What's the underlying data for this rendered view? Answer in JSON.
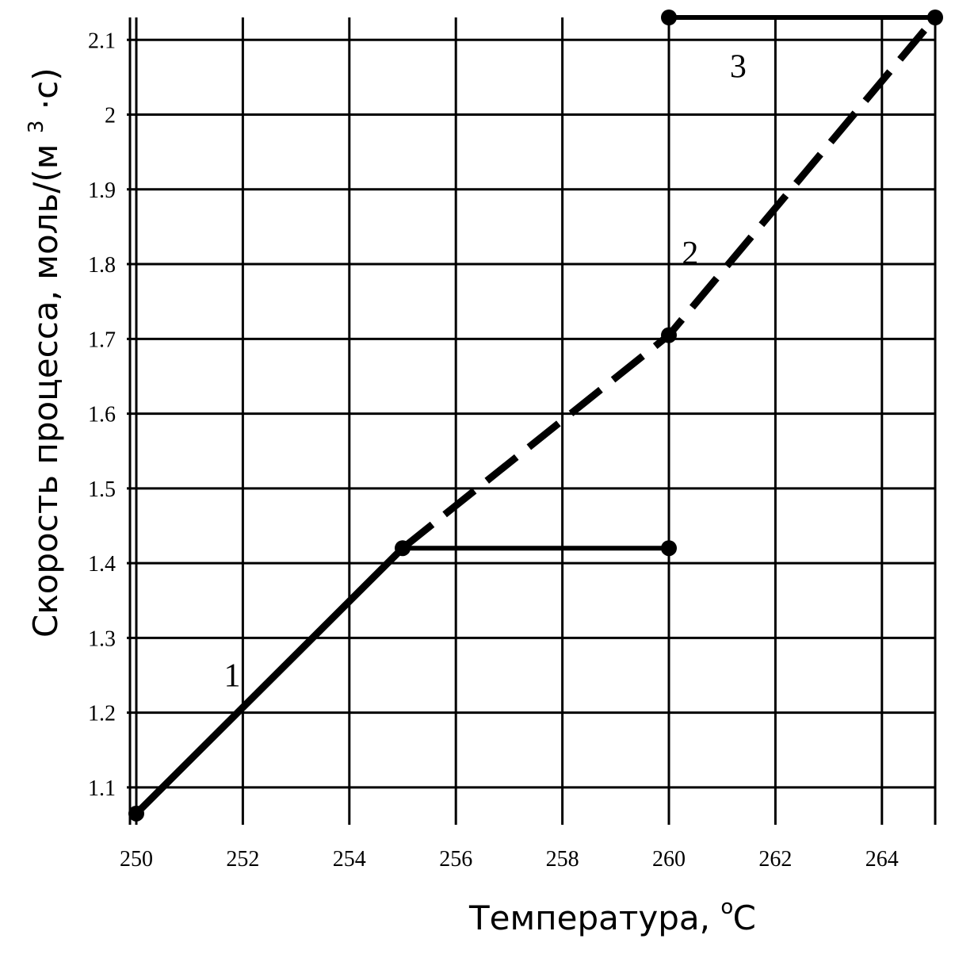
{
  "chart_data": {
    "type": "line",
    "xlabel_main": "Температура,",
    "xlabel_unit_sup": "o",
    "xlabel_unit": "C",
    "ylabel_main": "Скорость процесса, моль/(м",
    "ylabel_sup": "3",
    "ylabel_tail": "·с)",
    "xlim": [
      250,
      265
    ],
    "ylim": [
      1.05,
      2.13
    ],
    "grid": true,
    "x_ticks": [
      250,
      252,
      254,
      256,
      258,
      260,
      262,
      264
    ],
    "x_tick_labels": [
      "250",
      "252",
      "254",
      "256",
      "258",
      "260",
      "262",
      "264"
    ],
    "y_ticks": [
      1.1,
      1.2,
      1.3,
      1.4,
      1.5,
      1.6,
      1.7,
      1.8,
      1.9,
      2.0,
      2.1
    ],
    "y_tick_labels": [
      "1.1",
      "1.2",
      "1.3",
      "1.4",
      "1.5",
      "1.6",
      "1.7",
      "1.8",
      "1.9",
      "2",
      "2.1"
    ],
    "series": [
      {
        "label": "1",
        "style": "solid",
        "x": [
          250,
          255
        ],
        "y": [
          1.065,
          1.42
        ]
      },
      {
        "label": "2",
        "style": "dashed",
        "x": [
          255,
          260,
          265
        ],
        "y": [
          1.42,
          1.705,
          2.13
        ]
      },
      {
        "label": "3",
        "style": "solid",
        "x": [
          260,
          265
        ],
        "y": [
          2.13,
          2.13
        ]
      },
      {
        "label": "",
        "style": "solid",
        "x": [
          255,
          260
        ],
        "y": [
          1.42,
          1.42
        ]
      }
    ],
    "markers": [
      {
        "x": 250,
        "y": 1.065
      },
      {
        "x": 255,
        "y": 1.42
      },
      {
        "x": 260,
        "y": 1.42
      },
      {
        "x": 260,
        "y": 1.705
      },
      {
        "x": 260,
        "y": 2.13
      },
      {
        "x": 265,
        "y": 2.13
      }
    ],
    "curve_labels": [
      {
        "text": "1",
        "x": 251.8,
        "y": 1.235
      },
      {
        "text": "2",
        "x": 260.4,
        "y": 1.8
      },
      {
        "text": "3",
        "x": 261.3,
        "y": 2.05
      }
    ]
  }
}
